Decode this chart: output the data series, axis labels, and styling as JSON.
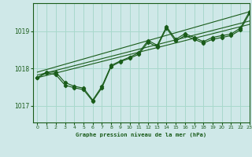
{
  "background_color": "#cfe8e8",
  "grid_color": "#a8d8cc",
  "line_color": "#1a5c1a",
  "title": "Graphe pression niveau de la mer (hPa)",
  "xlim": [
    -0.5,
    23
  ],
  "ylim": [
    1016.55,
    1019.75
  ],
  "yticks": [
    1017,
    1018,
    1019
  ],
  "xticks": [
    0,
    1,
    2,
    3,
    4,
    5,
    6,
    7,
    8,
    9,
    10,
    11,
    12,
    13,
    14,
    15,
    16,
    17,
    18,
    19,
    20,
    21,
    22,
    23
  ],
  "series1": [
    1017.75,
    1017.9,
    1017.9,
    1017.62,
    1017.52,
    1017.47,
    1017.15,
    1017.52,
    1018.08,
    1018.2,
    1018.3,
    1018.42,
    1018.75,
    1018.62,
    1019.12,
    1018.78,
    1018.93,
    1018.83,
    1018.72,
    1018.83,
    1018.88,
    1018.92,
    1019.08,
    1019.52
  ],
  "series2": [
    1017.75,
    1017.88,
    1017.83,
    1017.55,
    1017.48,
    1017.43,
    1017.12,
    1017.48,
    1018.05,
    1018.18,
    1018.27,
    1018.38,
    1018.7,
    1018.58,
    1019.08,
    1018.73,
    1018.88,
    1018.78,
    1018.68,
    1018.78,
    1018.83,
    1018.88,
    1019.03,
    1019.47
  ],
  "trend_lines": [
    {
      "x": [
        0,
        23
      ],
      "y": [
        1017.9,
        1019.52
      ]
    },
    {
      "x": [
        0,
        23
      ],
      "y": [
        1017.82,
        1019.27
      ]
    },
    {
      "x": [
        0,
        23
      ],
      "y": [
        1017.75,
        1019.18
      ]
    }
  ]
}
